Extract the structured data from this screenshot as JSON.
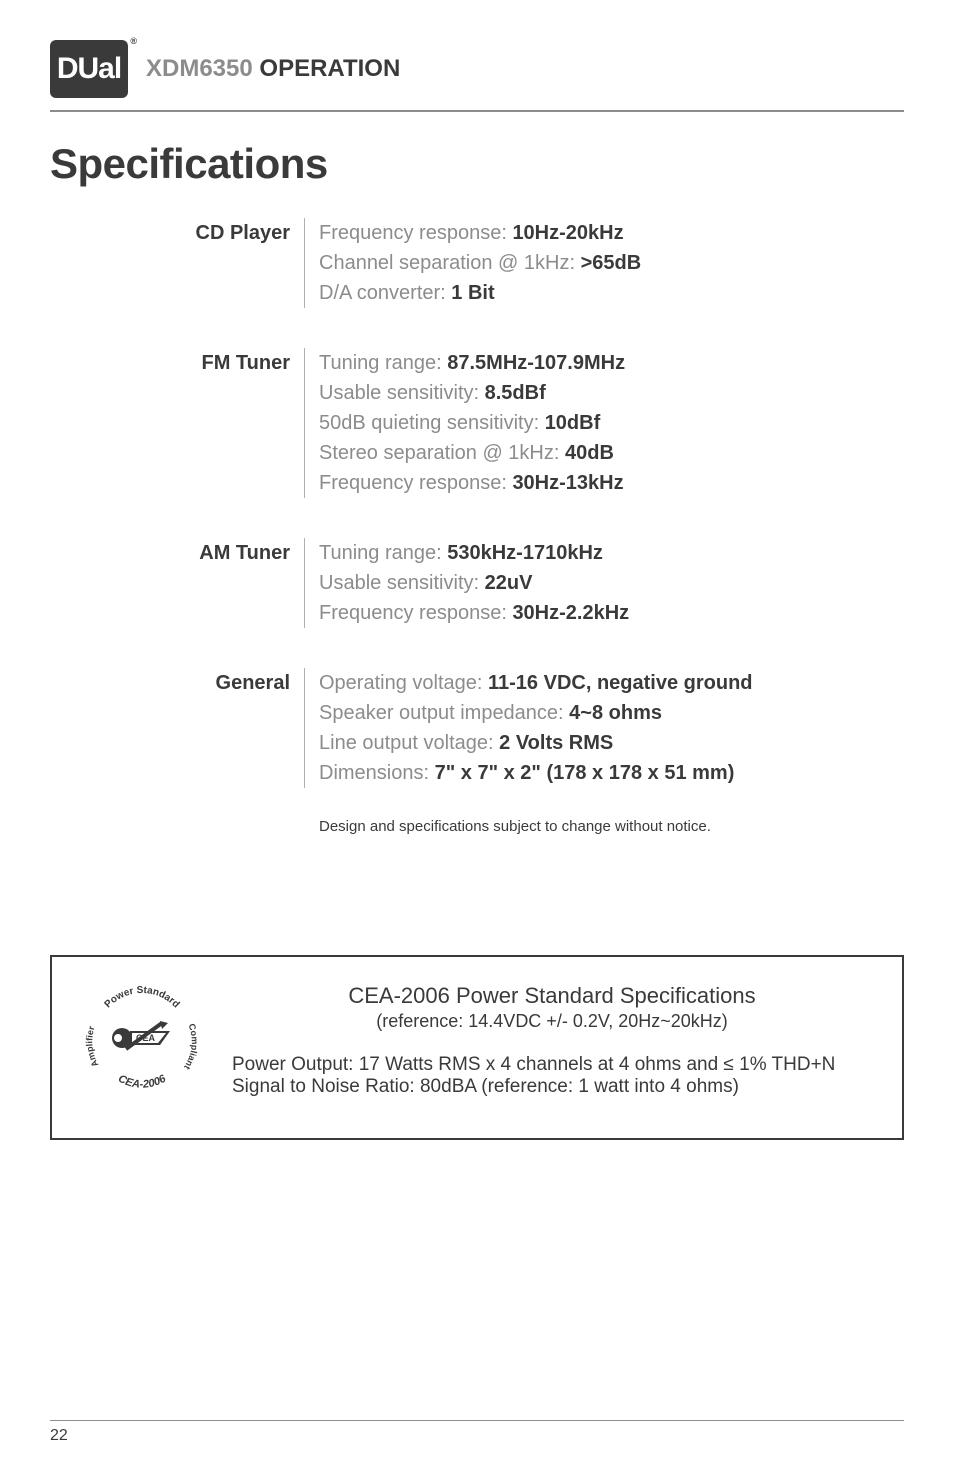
{
  "header": {
    "logo_text": "DUal",
    "model": "XDM6350",
    "operation": "OPERATION"
  },
  "title": "Specifications",
  "specs": [
    {
      "label": "CD Player",
      "lines": [
        {
          "key": "Frequency response:  ",
          "val": "10Hz-20kHz"
        },
        {
          "key": "Channel separation @ 1kHz:  ",
          "val": ">65dB"
        },
        {
          "key": "D/A converter:  ",
          "val": "1 Bit"
        }
      ]
    },
    {
      "label": "FM Tuner",
      "lines": [
        {
          "key": "Tuning range:  ",
          "val": "87.5MHz-107.9MHz"
        },
        {
          "key": "Usable sensitivity:  ",
          "val": "8.5dBf"
        },
        {
          "key": "50dB quieting sensitivity:  ",
          "val": "10dBf"
        },
        {
          "key": "Stereo separation @ 1kHz:  ",
          "val": "40dB"
        },
        {
          "key": "Frequency response:  ",
          "val": "30Hz-13kHz"
        }
      ]
    },
    {
      "label": "AM Tuner",
      "lines": [
        {
          "key": "Tuning range:  ",
          "val": "530kHz-1710kHz"
        },
        {
          "key": "Usable sensitivity:  ",
          "val": "22uV"
        },
        {
          "key": "Frequency response:  ",
          "val": "30Hz-2.2kHz"
        }
      ]
    },
    {
      "label": "General",
      "lines": [
        {
          "key": "Operating voltage:  ",
          "val": "11-16 VDC, negative ground"
        },
        {
          "key": "Speaker output impedance:  ",
          "val": "4~8 ohms"
        },
        {
          "key": "Line output voltage:  ",
          "val": "2 Volts RMS"
        },
        {
          "key": "Dimensions:  ",
          "val": "7\" x 7\" x 2\" (178 x 178 x 51 mm)"
        }
      ]
    }
  ],
  "notice": "Design and specifications subject to change without notice.",
  "cea": {
    "title": "CEA-2006 Power Standard Specifications",
    "sub": "(reference: 14.4VDC +/- 0.2V, 20Hz~20kHz)",
    "line1": "Power Output: 17 Watts RMS x 4 channels at 4 ohms and ≤ 1% THD+N",
    "line2": "Signal to Noise Ratio: 80dBA (reference: 1 watt into 4 ohms)",
    "badge_top": "Power Standard",
    "badge_left": "Amplifier",
    "badge_right": "Compliant",
    "badge_bottom": "CEA-2006",
    "badge_cea": "CEA"
  },
  "page": "22",
  "colors": {
    "text_dark": "#3a3a3a",
    "text_grey": "#8c8c8c",
    "rule": "#8c8c8c",
    "bg": "#ffffff"
  }
}
